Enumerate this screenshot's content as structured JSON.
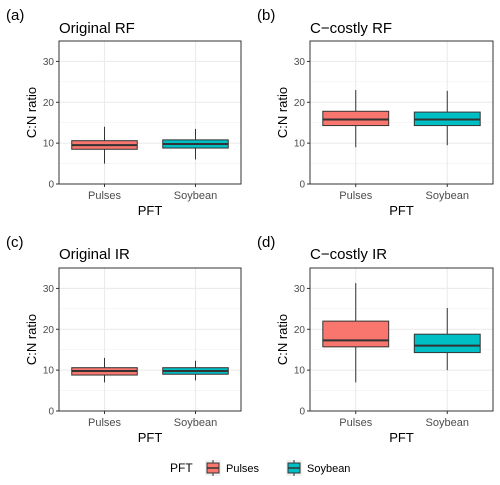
{
  "chart_data": [
    {
      "type": "box",
      "panel_label": "(a)",
      "title": "Original RF",
      "xlabel": "PFT",
      "ylabel": "C:N ratio",
      "ylim": [
        0,
        35
      ],
      "yticks": [
        0,
        10,
        20,
        30
      ],
      "categories": [
        "Pulses",
        "Soybean"
      ],
      "boxes": [
        {
          "category": "Pulses",
          "whisker_low": 5,
          "q1": 8.5,
          "median": 9.5,
          "q3": 10.6,
          "whisker_high": 14
        },
        {
          "category": "Soybean",
          "whisker_low": 6,
          "q1": 8.8,
          "median": 9.8,
          "q3": 10.8,
          "whisker_high": 13.5
        }
      ]
    },
    {
      "type": "box",
      "panel_label": "(b)",
      "title": "C−costly RF",
      "xlabel": "PFT",
      "ylabel": "C:N ratio",
      "ylim": [
        0,
        35
      ],
      "yticks": [
        0,
        10,
        20,
        30
      ],
      "categories": [
        "Pulses",
        "Soybean"
      ],
      "boxes": [
        {
          "category": "Pulses",
          "whisker_low": 9,
          "q1": 14.3,
          "median": 15.8,
          "q3": 17.8,
          "whisker_high": 23
        },
        {
          "category": "Soybean",
          "whisker_low": 9.5,
          "q1": 14.3,
          "median": 15.8,
          "q3": 17.6,
          "whisker_high": 22.8
        }
      ]
    },
    {
      "type": "box",
      "panel_label": "(c)",
      "title": "Original IR",
      "xlabel": "PFT",
      "ylabel": "C:N ratio",
      "ylim": [
        0,
        35
      ],
      "yticks": [
        0,
        10,
        20,
        30
      ],
      "categories": [
        "Pulses",
        "Soybean"
      ],
      "boxes": [
        {
          "category": "Pulses",
          "whisker_low": 7,
          "q1": 8.8,
          "median": 9.8,
          "q3": 10.6,
          "whisker_high": 13
        },
        {
          "category": "Soybean",
          "whisker_low": 7.5,
          "q1": 9,
          "median": 9.8,
          "q3": 10.6,
          "whisker_high": 12.3
        }
      ]
    },
    {
      "type": "box",
      "panel_label": "(d)",
      "title": "C−costly IR",
      "xlabel": "PFT",
      "ylabel": "C:N ratio",
      "ylim": [
        0,
        35
      ],
      "yticks": [
        0,
        10,
        20,
        30
      ],
      "categories": [
        "Pulses",
        "Soybean"
      ],
      "boxes": [
        {
          "category": "Pulses",
          "whisker_low": 7,
          "q1": 15.7,
          "median": 17.3,
          "q3": 22,
          "whisker_high": 31.3
        },
        {
          "category": "Soybean",
          "whisker_low": 10,
          "q1": 14.3,
          "median": 16,
          "q3": 18.8,
          "whisker_high": 25.2
        }
      ]
    }
  ],
  "legend": {
    "title": "PFT",
    "items": [
      {
        "label": "Pulses",
        "color": "#F8766D"
      },
      {
        "label": "Soybean",
        "color": "#00BFC4"
      }
    ],
    "position": "bottom"
  }
}
